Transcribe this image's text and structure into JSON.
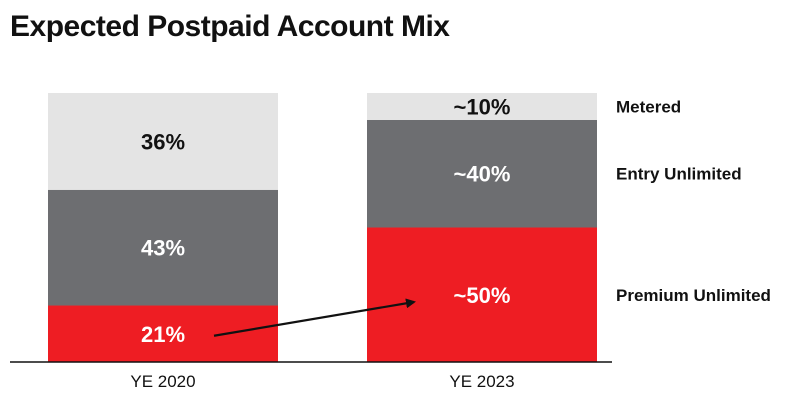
{
  "title": "Expected Postpaid Account Mix",
  "colors": {
    "metered": "#e4e4e4",
    "entry": "#6d6e71",
    "premium": "#ee1d23",
    "baseline": "#111111",
    "arrow": "#111111"
  },
  "chart_data": {
    "type": "bar",
    "stacked": true,
    "title": "Expected Postpaid Account Mix",
    "categories": [
      "YE 2020",
      "YE 2023"
    ],
    "ylim": [
      0,
      100
    ],
    "grid": false,
    "legend_placement": "right",
    "series": [
      {
        "name": "Premium Unlimited",
        "values": [
          21,
          50
        ],
        "labels": [
          "21%",
          "~50%"
        ],
        "color": "#ee1d23",
        "label_color": "#ffffff"
      },
      {
        "name": "Entry Unlimited",
        "values": [
          43,
          40
        ],
        "labels": [
          "43%",
          "~40%"
        ],
        "color": "#6d6e71",
        "label_color": "#ffffff"
      },
      {
        "name": "Metered",
        "values": [
          36,
          10
        ],
        "labels": [
          "36%",
          "~10%"
        ],
        "color": "#e4e4e4",
        "label_color": "#111111"
      }
    ],
    "annotations": [
      {
        "type": "arrow",
        "from": "YE 2020 Premium Unlimited",
        "to": "YE 2023 Premium Unlimited"
      }
    ]
  }
}
